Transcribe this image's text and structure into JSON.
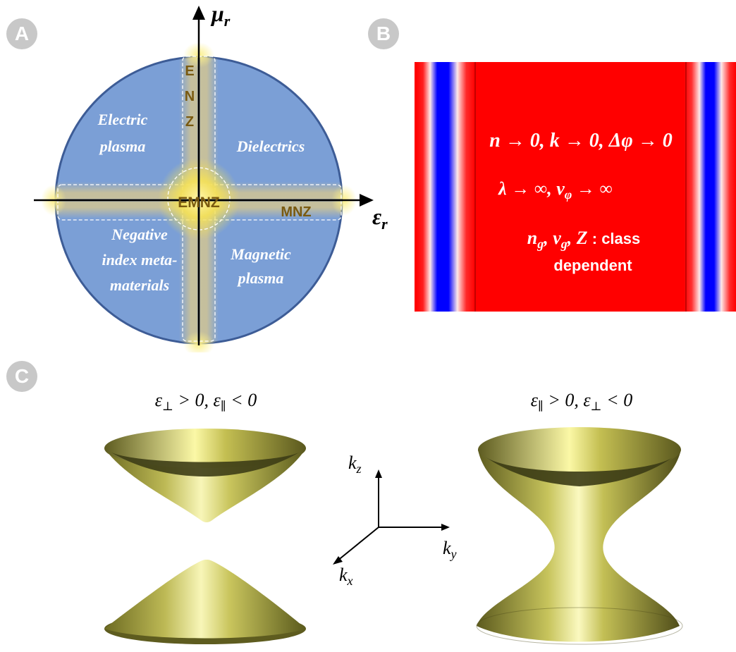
{
  "panels": {
    "a": {
      "badge": "A"
    },
    "b": {
      "badge": "B"
    },
    "c": {
      "badge": "C"
    }
  },
  "phase_diagram": {
    "y_axis_label": "μ",
    "y_axis_sub": "r",
    "x_axis_label": "ε",
    "x_axis_sub": "r",
    "enz_letters": [
      "E",
      "N",
      "Z"
    ],
    "emnz_label": "EMNZ",
    "mnz_label": "MNZ",
    "quadrants": {
      "top_left": [
        "Electric",
        "plasma"
      ],
      "top_right": [
        "Dielectrics"
      ],
      "bottom_left": [
        "Negative",
        "index meta-",
        "materials"
      ],
      "bottom_right": [
        "Magnetic",
        "plasma"
      ]
    },
    "colors": {
      "disk": "#7b9fd6",
      "disk_border": "#3d5c96",
      "label": "#7a5a10",
      "glow": "#f7e36b"
    }
  },
  "wave_panel": {
    "line1": "n → 0, k → 0, Δφ → 0",
    "line2": "λ → ∞, v",
    "line2_sub": "φ",
    "line2_tail": " → ∞",
    "line3_math": "n",
    "line3_sub1": "g",
    "line3_mid": ", v",
    "line3_sub2": "g",
    "line3_tail": ", Z",
    "line3_text": " : class",
    "line4": "dependent",
    "colors": {
      "field": "#ff0000",
      "node": "#0000ff"
    }
  },
  "dispersion": {
    "left_title_parts": [
      "ε",
      "⊥",
      " > 0, ε",
      "∥",
      " < 0"
    ],
    "right_title_parts": [
      "ε",
      "∥",
      " > 0, ε",
      "⊥",
      " < 0"
    ],
    "axes": {
      "kz": "k",
      "kz_sub": "z",
      "ky": "k",
      "ky_sub": "y",
      "kx": "k",
      "kx_sub": "x"
    },
    "colors": {
      "surface_light": "#e8e37a",
      "surface_mid": "#9b9a3a",
      "surface_dark": "#3d3d18"
    }
  }
}
